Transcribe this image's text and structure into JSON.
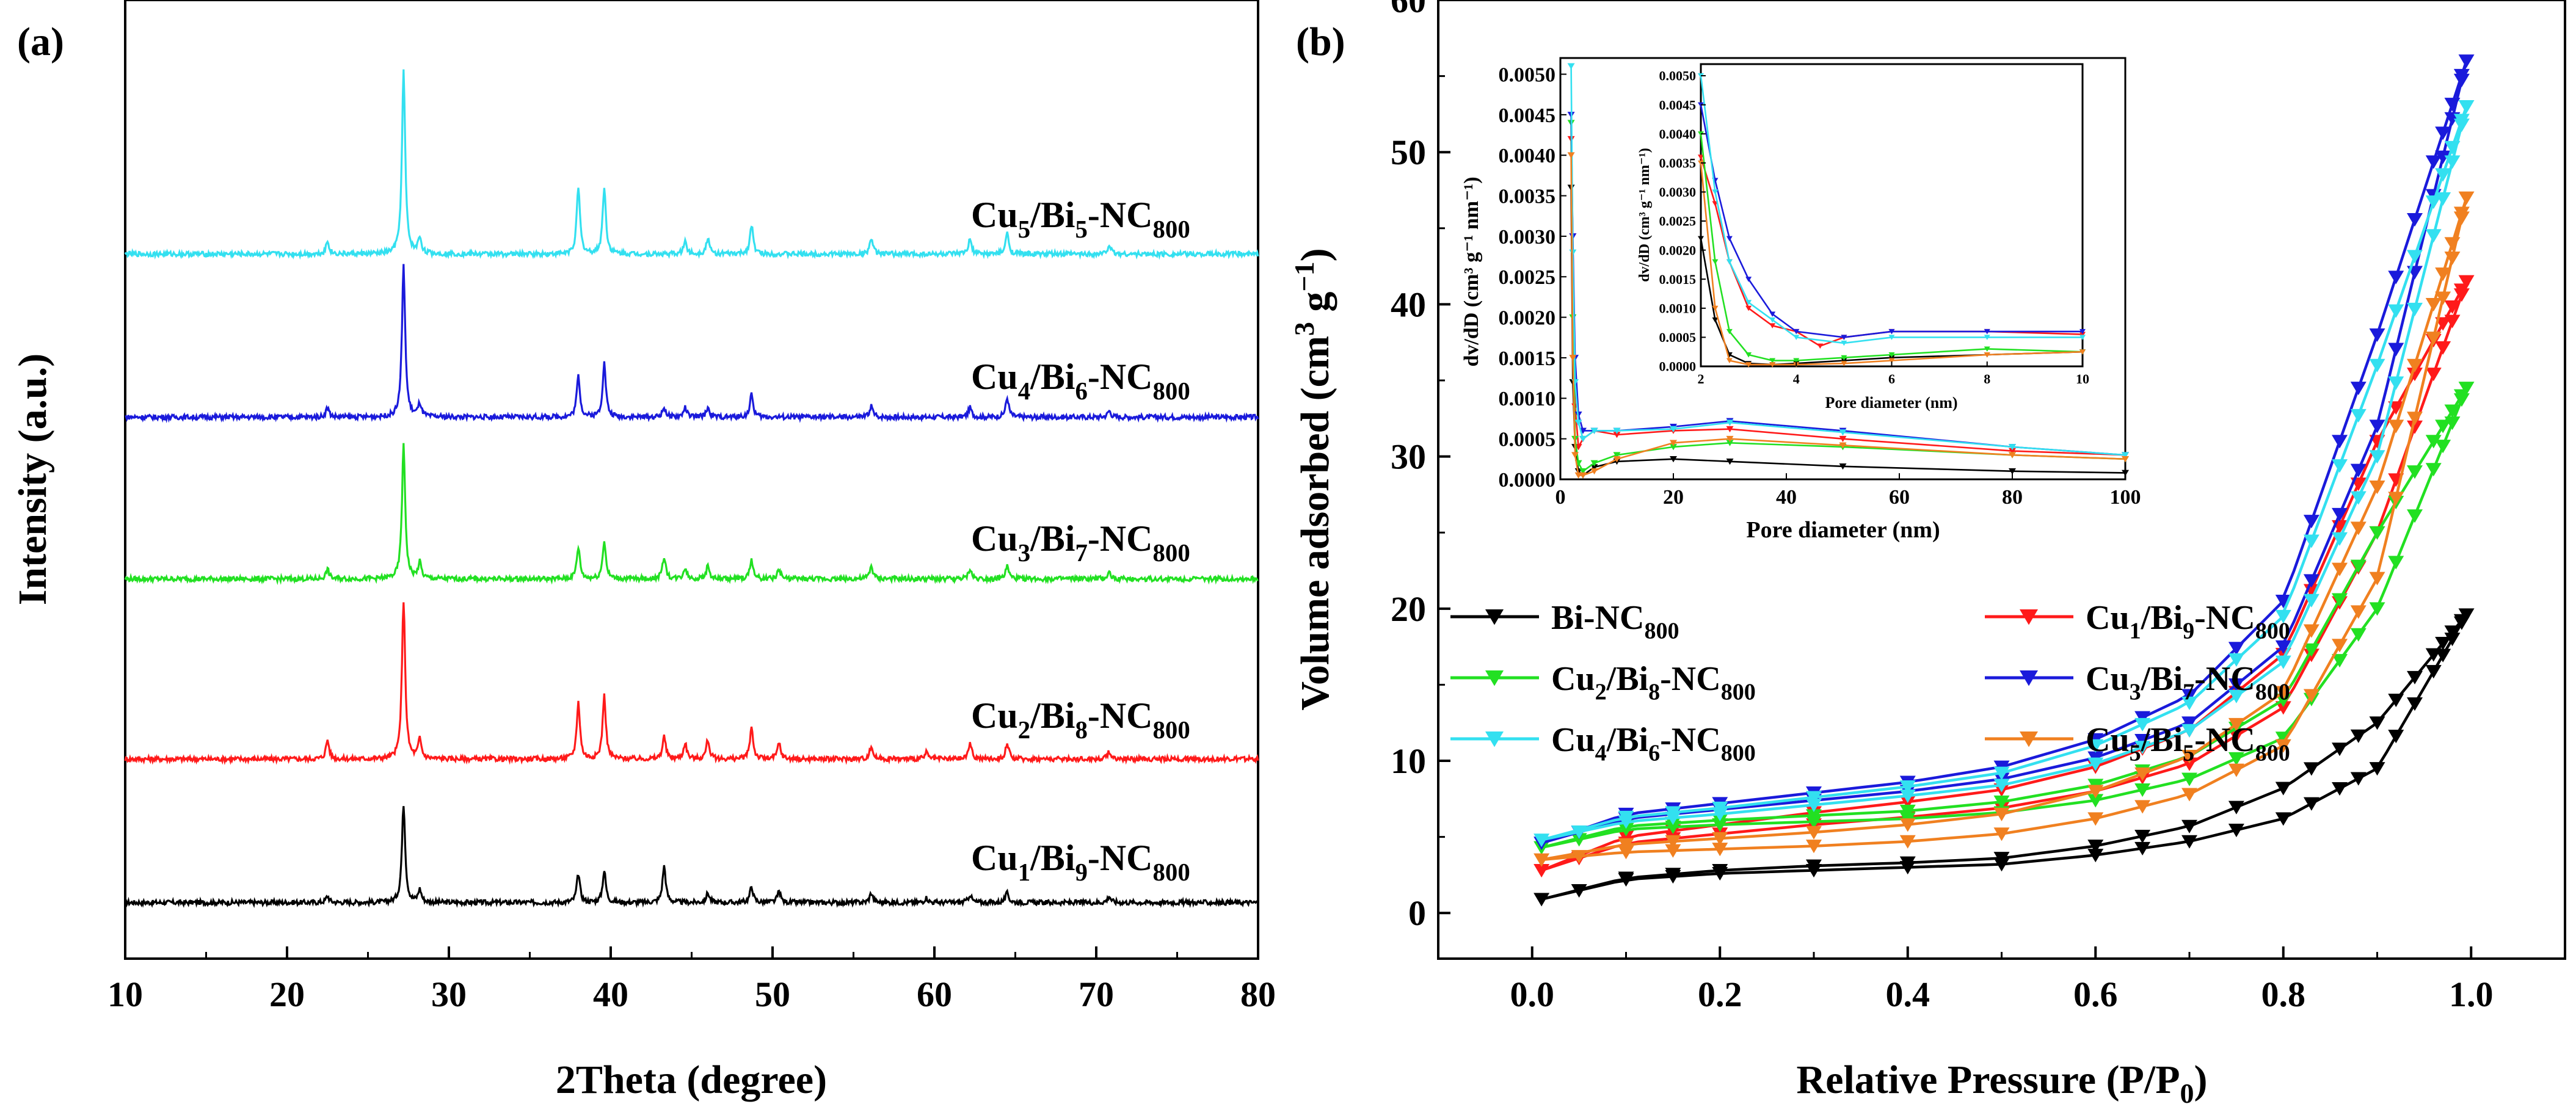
{
  "panels": {
    "a": {
      "label": "(a)"
    },
    "b": {
      "label": "(b)"
    }
  },
  "chart_data": [
    {
      "id": "xrd",
      "type": "line",
      "title": "",
      "xlabel": "2Theta (degree)",
      "ylabel": "Intensity (a.u.)",
      "xlim": [
        10,
        80
      ],
      "xticks": [
        10,
        20,
        30,
        40,
        50,
        60,
        70,
        80
      ],
      "xtick_labels": [
        "10",
        "20",
        "30",
        "40",
        "50",
        "60",
        "70",
        "80"
      ],
      "series": [
        {
          "name": "Cu1/Bi9-NC800",
          "label_main": "Cu",
          "s1": "1",
          "mid": "/Bi",
          "s2": "9",
          "tail": "-NC",
          "s3": "800",
          "color": "#000000",
          "peaks": [
            [
              22.5,
              4
            ],
            [
              27.2,
              62
            ],
            [
              28.2,
              8
            ],
            [
              38.0,
              18
            ],
            [
              39.6,
              20
            ],
            [
              43.3,
              23
            ],
            [
              46.0,
              6
            ],
            [
              48.7,
              10
            ],
            [
              50.4,
              7
            ],
            [
              56.1,
              6
            ],
            [
              59.5,
              3
            ],
            [
              62.2,
              5
            ],
            [
              64.5,
              6
            ],
            [
              70.8,
              4
            ]
          ]
        },
        {
          "name": "Cu2/Bi8-NC800",
          "label_main": "Cu",
          "s1": "2",
          "mid": "/Bi",
          "s2": "8",
          "tail": "-NC",
          "s3": "800",
          "color": "#ff1a1a",
          "peaks": [
            [
              22.5,
              12
            ],
            [
              27.2,
              100
            ],
            [
              28.2,
              12
            ],
            [
              38.0,
              36
            ],
            [
              39.6,
              40
            ],
            [
              43.3,
              14
            ],
            [
              44.6,
              10
            ],
            [
              46.0,
              12
            ],
            [
              48.7,
              20
            ],
            [
              50.4,
              10
            ],
            [
              56.1,
              8
            ],
            [
              59.5,
              4
            ],
            [
              62.2,
              10
            ],
            [
              64.5,
              10
            ],
            [
              70.8,
              5
            ]
          ]
        },
        {
          "name": "Cu3/Bi7-NC800",
          "label_main": "Cu",
          "s1": "3",
          "mid": "/Bi",
          "s2": "7",
          "tail": "-NC",
          "s3": "800",
          "color": "#22e022",
          "peaks": [
            [
              22.5,
              6
            ],
            [
              27.2,
              84
            ],
            [
              28.2,
              10
            ],
            [
              38.0,
              20
            ],
            [
              39.6,
              24
            ],
            [
              43.3,
              14
            ],
            [
              44.6,
              7
            ],
            [
              46.0,
              8
            ],
            [
              48.7,
              12
            ],
            [
              50.4,
              6
            ],
            [
              56.1,
              8
            ],
            [
              62.2,
              6
            ],
            [
              64.5,
              8
            ],
            [
              70.8,
              4
            ]
          ]
        },
        {
          "name": "Cu4/Bi6-NC800",
          "label_main": "Cu",
          "s1": "4",
          "mid": "/Bi",
          "s2": "6",
          "tail": "-NC",
          "s3": "800",
          "color": "#1a1adb",
          "peaks": [
            [
              22.5,
              6
            ],
            [
              27.2,
              95
            ],
            [
              28.2,
              8
            ],
            [
              38.0,
              26
            ],
            [
              39.6,
              34
            ],
            [
              43.3,
              6
            ],
            [
              44.6,
              6
            ],
            [
              46.0,
              6
            ],
            [
              48.7,
              14
            ],
            [
              56.1,
              7
            ],
            [
              62.2,
              6
            ],
            [
              64.5,
              12
            ],
            [
              70.8,
              4
            ]
          ]
        },
        {
          "name": "Cu5/Bi5-NC800",
          "label_main": "Cu",
          "s1": "5",
          "mid": "/Bi",
          "s2": "5",
          "tail": "-NC",
          "s3": "800",
          "color": "#33e0f0",
          "peaks": [
            [
              22.5,
              8
            ],
            [
              27.2,
              115
            ],
            [
              28.2,
              10
            ],
            [
              38.0,
              42
            ],
            [
              39.6,
              42
            ],
            [
              44.6,
              8
            ],
            [
              46.0,
              10
            ],
            [
              48.7,
              18
            ],
            [
              56.1,
              10
            ],
            [
              62.2,
              9
            ],
            [
              64.5,
              13
            ],
            [
              70.8,
              6
            ]
          ]
        }
      ]
    },
    {
      "id": "bet",
      "type": "line",
      "title": "",
      "xlabel_main": "Relative Pressure (P/P",
      "xlabel_sub": "0",
      "xlabel_close": ")",
      "ylabel_main": "Volume adsorbed (cm",
      "ylabel_sup1": "3",
      "ylabel_mid": " g",
      "ylabel_sup2": "−1",
      "ylabel_close": ")",
      "xlim": [
        -0.1,
        1.1
      ],
      "ylim": [
        -3,
        60
      ],
      "xticks": [
        0.0,
        0.2,
        0.4,
        0.6,
        0.8,
        1.0
      ],
      "xtick_labels": [
        "0.0",
        "0.2",
        "0.4",
        "0.6",
        "0.8",
        "1.0"
      ],
      "yticks": [
        0,
        10,
        20,
        30,
        40,
        50,
        60
      ],
      "ytick_labels": [
        "0",
        "10",
        "20",
        "30",
        "40",
        "50",
        "60"
      ],
      "legend_position": "center-left",
      "series": [
        {
          "name": "Bi-NC800",
          "lmain": "Bi-NC",
          "lsub": "800",
          "color": "#000000",
          "ads": [
            0.9,
            2.2,
            2.6,
            2.8,
            3.0,
            3.2,
            3.8,
            4.7,
            6.2,
            9.5,
            19.6
          ],
          "des_offset": [
            0,
            0.1,
            0.2,
            0.3,
            0.3,
            0.4,
            0.6,
            1.0,
            2.0,
            3.0,
            0
          ]
        },
        {
          "name": "Cu1/Bi9-NC800",
          "lmain": "Cu",
          "ls1": "1",
          "lmid": "/Bi",
          "ls2": "9",
          "ltail": "-NC",
          "lsub": "800",
          "color": "#ff1a1a",
          "ads": [
            2.8,
            4.6,
            5.2,
            5.8,
            6.3,
            6.9,
            8.0,
            9.8,
            13.5,
            25,
            41.5
          ],
          "des_offset": [
            0,
            0.4,
            0.6,
            0.8,
            1.0,
            1.2,
            1.6,
            2.2,
            3.5,
            6,
            0
          ]
        },
        {
          "name": "Cu2/Bi8-NC800",
          "lmain": "Cu",
          "ls1": "2",
          "lmid": "/Bi",
          "ls2": "8",
          "ltail": "-NC",
          "lsub": "800",
          "color": "#22e022",
          "ads": [
            4.3,
            5.5,
            5.8,
            6.0,
            6.2,
            6.6,
            7.4,
            8.8,
            11.5,
            20,
            34.5
          ],
          "des_offset": [
            0,
            0.2,
            0.3,
            0.4,
            0.5,
            0.7,
            1.0,
            1.5,
            2.5,
            5,
            0
          ]
        },
        {
          "name": "Cu3/Bi7-NC800",
          "lmain": "Cu",
          "ls1": "3",
          "lmid": "/Bi",
          "ls2": "7",
          "ltail": "-NC",
          "lsub": "800",
          "color": "#1a1adb",
          "ads": [
            4.6,
            6.2,
            6.8,
            7.4,
            8.0,
            8.8,
            10.2,
            12.5,
            17.5,
            32,
            56
          ],
          "des_offset": [
            0,
            0.3,
            0.4,
            0.5,
            0.6,
            0.8,
            1.2,
            1.8,
            3.0,
            6,
            0
          ]
        },
        {
          "name": "Cu4/Bi6-NC800",
          "lmain": "Cu",
          "ls1": "4",
          "lmid": "/Bi",
          "ls2": "6",
          "ltail": "-NC",
          "lsub": "800",
          "color": "#33e0f0",
          "ads": [
            4.8,
            6.0,
            6.5,
            7.1,
            7.7,
            8.4,
            9.8,
            12.0,
            16.5,
            30,
            53
          ],
          "des_offset": [
            0,
            0.3,
            0.4,
            0.5,
            0.6,
            0.8,
            1.2,
            1.8,
            3.0,
            6,
            0
          ]
        },
        {
          "name": "Cu5/Bi5-NC800",
          "lmain": "Cu",
          "ls1": "5",
          "lmid": "/Bi",
          "ls2": "5",
          "ltail": "-NC",
          "lsub": "800",
          "color": "#f08020",
          "ads": [
            3.5,
            4.0,
            4.2,
            4.4,
            4.7,
            5.2,
            6.2,
            7.8,
            11.0,
            22,
            47
          ],
          "des_offset": [
            0,
            0.5,
            0.7,
            0.9,
            1.1,
            1.3,
            1.8,
            2.5,
            3.5,
            6,
            0
          ]
        }
      ],
      "p_grid": [
        0.01,
        0.1,
        0.2,
        0.3,
        0.4,
        0.5,
        0.6,
        0.7,
        0.8,
        0.9,
        0.995
      ]
    },
    {
      "id": "psd_inset",
      "type": "line",
      "xlabel": "Pore diameter (nm)",
      "ylabel": "dv/dD (cm³ g⁻¹ nm⁻¹)",
      "xlim": [
        0,
        100
      ],
      "ylim": [
        0,
        0.0052
      ],
      "xticks": [
        0,
        20,
        40,
        60,
        80,
        100
      ],
      "xtick_labels": [
        "0",
        "20",
        "40",
        "60",
        "80",
        "100"
      ],
      "yticks": [
        0,
        0.0005,
        0.001,
        0.0015,
        0.002,
        0.0025,
        0.003,
        0.0035,
        0.004,
        0.0045,
        0.005
      ],
      "ytick_labels": [
        "0.0000",
        "0.0005",
        "0.0010",
        "0.0015",
        "0.0020",
        "0.0025",
        "0.0030",
        "0.0035",
        "0.0040",
        "0.0045",
        "0.0050"
      ],
      "series": [
        {
          "name": "Bi-NC800",
          "color": "#000000",
          "x": [
            1.9,
            2.2,
            2.6,
            3.2,
            4,
            6,
            10,
            20,
            30,
            50,
            80,
            100
          ],
          "y": [
            0.0036,
            0.0012,
            0.0004,
            0.0001,
            5e-05,
            0.00015,
            0.00022,
            0.00025,
            0.00022,
            0.00016,
            0.0001,
            8e-05
          ]
        },
        {
          "name": "Cu1/Bi9-NC800",
          "color": "#ff1a1a",
          "x": [
            1.9,
            2.2,
            2.6,
            3.2,
            4,
            6,
            10,
            20,
            30,
            50,
            80,
            100
          ],
          "y": [
            0.0042,
            0.003,
            0.0009,
            0.0004,
            0.0005,
            0.0006,
            0.00055,
            0.0006,
            0.00062,
            0.0005,
            0.00035,
            0.0003
          ]
        },
        {
          "name": "Cu2/Bi8-NC800",
          "color": "#22e022",
          "x": [
            1.9,
            2.2,
            2.6,
            3.2,
            4,
            6,
            10,
            20,
            30,
            50,
            80,
            100
          ],
          "y": [
            0.0044,
            0.002,
            0.0005,
            0.0002,
            0.0001,
            0.0002,
            0.0003,
            0.0004,
            0.00045,
            0.0004,
            0.0003,
            0.00025
          ]
        },
        {
          "name": "Cu3/Bi7-NC800",
          "color": "#1a1adb",
          "x": [
            1.9,
            2.2,
            2.6,
            3.2,
            4,
            6,
            10,
            20,
            30,
            50,
            80,
            100
          ],
          "y": [
            0.0045,
            0.003,
            0.0015,
            0.0008,
            0.0006,
            0.0006,
            0.0006,
            0.00065,
            0.00072,
            0.0006,
            0.0004,
            0.0003
          ]
        },
        {
          "name": "Cu4/Bi6-NC800",
          "color": "#33e0f0",
          "x": [
            1.9,
            2.2,
            2.6,
            3.2,
            4,
            6,
            10,
            20,
            30,
            50,
            80,
            100
          ],
          "y": [
            0.0051,
            0.0028,
            0.0012,
            0.0007,
            0.0005,
            0.0006,
            0.0006,
            0.00062,
            0.0007,
            0.00058,
            0.0004,
            0.0003
          ]
        },
        {
          "name": "Cu5/Bi5-NC800",
          "color": "#f08020",
          "x": [
            1.9,
            2.2,
            2.6,
            3.2,
            4,
            6,
            10,
            20,
            30,
            50,
            80,
            100
          ],
          "y": [
            0.004,
            0.0015,
            0.0003,
            5e-05,
            5e-05,
            0.0001,
            0.00025,
            0.00045,
            0.0005,
            0.00042,
            0.0003,
            0.00025
          ]
        }
      ]
    },
    {
      "id": "psd_zoom",
      "type": "line",
      "xlabel": "Pore diameter (nm)",
      "ylabel": "dv/dD (cm³ g⁻¹ nm⁻¹)",
      "xlim": [
        2,
        10
      ],
      "ylim": [
        0,
        0.0052
      ],
      "xticks": [
        2,
        4,
        6,
        8,
        10
      ],
      "xtick_labels": [
        "2",
        "4",
        "6",
        "8",
        "10"
      ],
      "yticks": [
        0,
        0.0005,
        0.001,
        0.0015,
        0.002,
        0.0025,
        0.003,
        0.0035,
        0.004,
        0.0045,
        0.005
      ],
      "ytick_labels": [
        "0.0000",
        "0.0005",
        "0.0010",
        "0.0015",
        "0.0020",
        "0.0025",
        "0.0030",
        "0.0035",
        "0.0040",
        "0.0045",
        "0.0050"
      ],
      "series": [
        {
          "name": "Bi-NC800",
          "color": "#000000",
          "x": [
            2,
            2.3,
            2.6,
            3,
            3.5,
            4,
            5,
            6,
            8,
            10
          ],
          "y": [
            0.0022,
            0.0008,
            0.0002,
            5e-05,
            3e-05,
            5e-05,
            0.0001,
            0.00015,
            0.0002,
            0.00025
          ]
        },
        {
          "name": "Cu1/Bi9-NC800",
          "color": "#ff1a1a",
          "x": [
            2,
            2.3,
            2.6,
            3,
            3.5,
            4,
            4.5,
            5,
            6,
            8,
            10
          ],
          "y": [
            0.0036,
            0.0028,
            0.0018,
            0.001,
            0.0007,
            0.0006,
            0.00035,
            0.0005,
            0.0006,
            0.0006,
            0.00055
          ]
        },
        {
          "name": "Cu2/Bi8-NC800",
          "color": "#22e022",
          "x": [
            2,
            2.3,
            2.6,
            3,
            3.5,
            4,
            5,
            6,
            8,
            10
          ],
          "y": [
            0.004,
            0.0018,
            0.0006,
            0.0002,
            0.0001,
            0.0001,
            0.00015,
            0.0002,
            0.0003,
            0.00025
          ]
        },
        {
          "name": "Cu3/Bi7-NC800",
          "color": "#1a1adb",
          "x": [
            2,
            2.3,
            2.6,
            3,
            3.5,
            4,
            5,
            6,
            8,
            10
          ],
          "y": [
            0.0045,
            0.0032,
            0.0022,
            0.0015,
            0.0009,
            0.0006,
            0.0005,
            0.0006,
            0.0006,
            0.0006
          ]
        },
        {
          "name": "Cu4/Bi6-NC800",
          "color": "#33e0f0",
          "x": [
            2,
            2.3,
            2.6,
            3,
            3.5,
            4,
            5,
            6,
            8,
            10
          ],
          "y": [
            0.005,
            0.003,
            0.0018,
            0.0011,
            0.0008,
            0.0005,
            0.0004,
            0.0005,
            0.0005,
            0.0005
          ]
        },
        {
          "name": "Cu5/Bi5-NC800",
          "color": "#f08020",
          "x": [
            2,
            2.3,
            2.6,
            3,
            3.5,
            4,
            5,
            6,
            8,
            10
          ],
          "y": [
            0.0035,
            0.001,
            0.0001,
            3e-05,
            3e-05,
            3e-05,
            5e-05,
            0.0001,
            0.0002,
            0.00025
          ]
        }
      ]
    }
  ]
}
